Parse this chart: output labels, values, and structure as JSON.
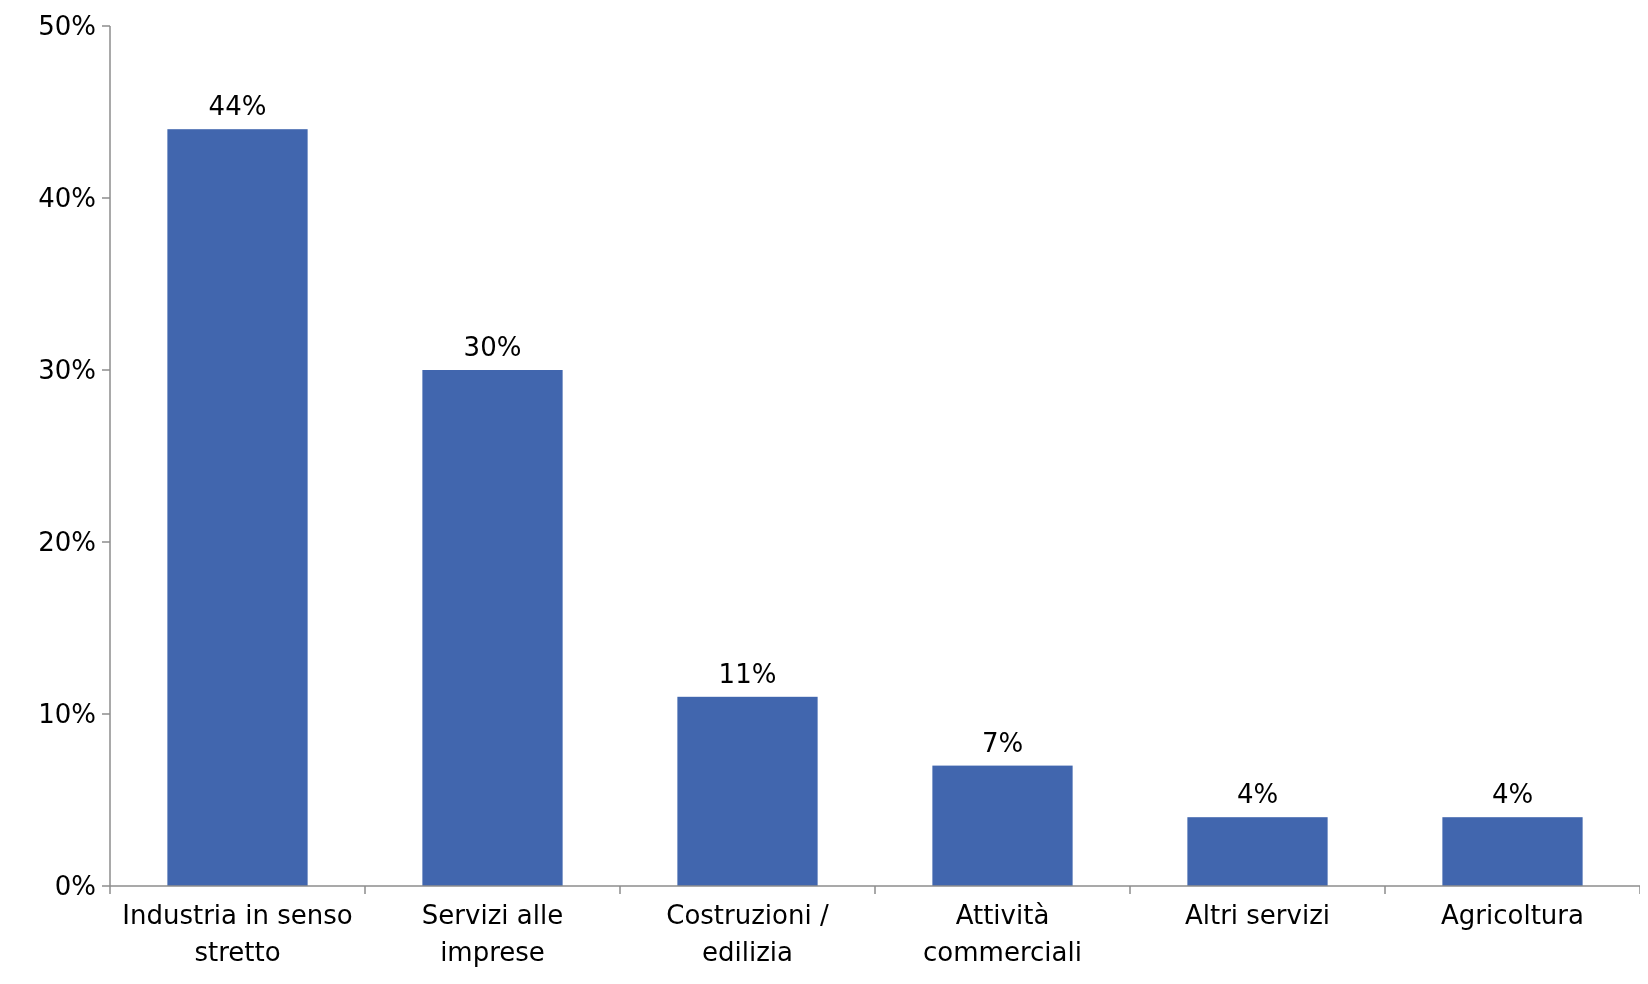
{
  "chart_data": {
    "type": "bar",
    "categories": [
      "Industria in senso stretto",
      "Servizi alle imprese",
      "Costruzioni / edilizia",
      "Attività commerciali",
      "Altri servizi",
      "Agricoltura"
    ],
    "values": [
      44,
      30,
      11,
      7,
      4,
      4
    ],
    "value_labels": [
      "44%",
      "30%",
      "11%",
      "7%",
      "4%",
      "4%"
    ],
    "color": "#4166ae",
    "ylim": [
      0,
      50
    ],
    "yticks": [
      {
        "value": 0,
        "label": "0%"
      },
      {
        "value": 10,
        "label": "10%"
      },
      {
        "value": 20,
        "label": "20%"
      },
      {
        "value": 30,
        "label": "30%"
      },
      {
        "value": 40,
        "label": "40%"
      },
      {
        "value": 50,
        "label": "50%"
      }
    ],
    "grid": false
  }
}
